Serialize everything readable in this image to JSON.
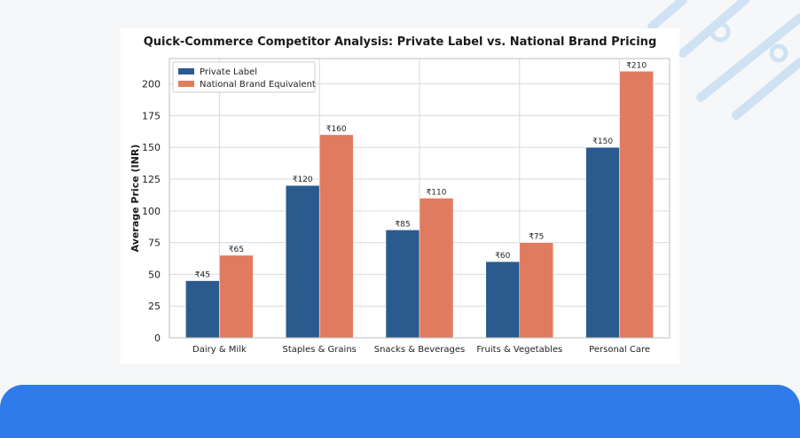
{
  "colors": {
    "background": "#f6f7f9",
    "bottom_bar": "#2f7bea",
    "private_label": "#2b5b8e",
    "national_brand": "#e07b5f",
    "grid": "#d9d9d9",
    "decoration": "#bcd6ee"
  },
  "chart_data": {
    "type": "bar",
    "title": "Quick-Commerce Competitor Analysis: Private Label vs. National Brand Pricing",
    "xlabel": "",
    "ylabel": "Average Price (INR)",
    "ylim": [
      0,
      220
    ],
    "yticks": [
      0,
      25,
      50,
      75,
      100,
      125,
      150,
      175,
      200
    ],
    "grid": true,
    "legend_position": "top-left",
    "categories": [
      "Dairy & Milk",
      "Staples & Grains",
      "Snacks & Beverages",
      "Fruits & Vegetables",
      "Personal Care"
    ],
    "series": [
      {
        "name": "Private Label",
        "color": "#2b5b8e",
        "values": [
          45,
          120,
          85,
          60,
          150
        ],
        "labels": [
          "₹45",
          "₹120",
          "₹85",
          "₹60",
          "₹150"
        ]
      },
      {
        "name": "National Brand Equivalent",
        "color": "#e07b5f",
        "values": [
          65,
          160,
          110,
          75,
          210
        ],
        "labels": [
          "₹65",
          "₹160",
          "₹110",
          "₹75",
          "₹210"
        ]
      }
    ]
  }
}
